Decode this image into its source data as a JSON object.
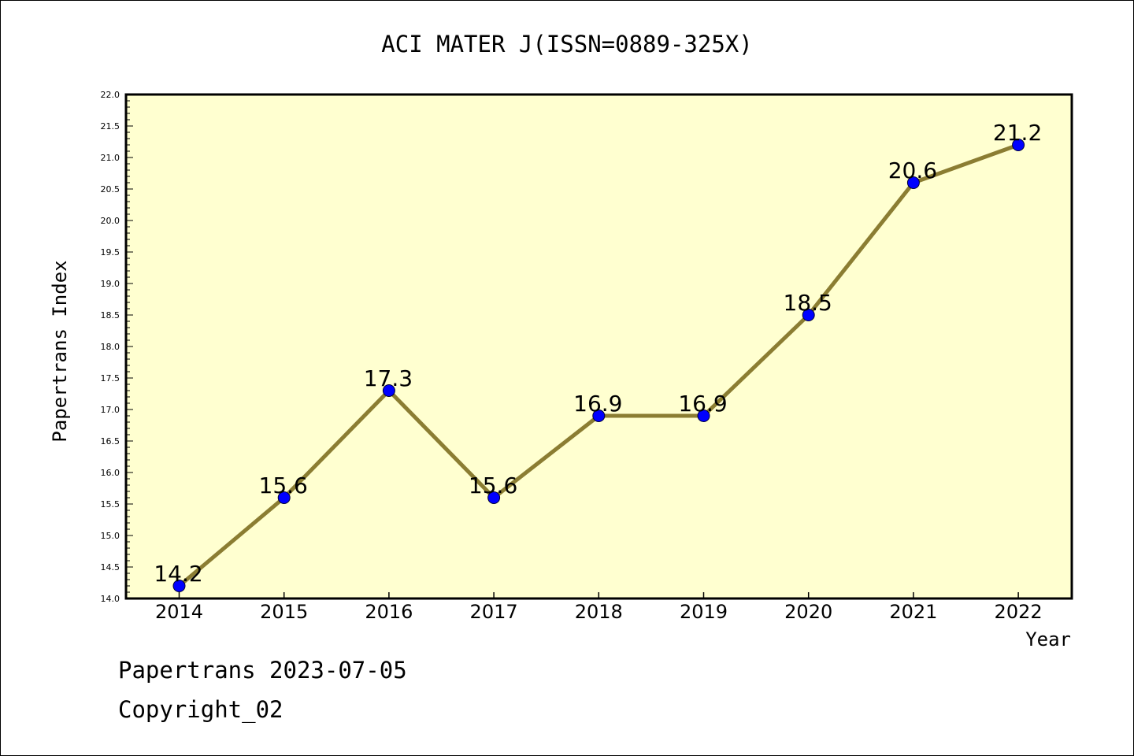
{
  "chart_data": {
    "type": "line",
    "title": "ACI MATER J(ISSN=0889-325X)",
    "xlabel": "Year",
    "ylabel": "Papertrans Index",
    "categories": [
      "2014",
      "2015",
      "2016",
      "2017",
      "2018",
      "2019",
      "2020",
      "2021",
      "2022"
    ],
    "values": [
      14.2,
      15.6,
      17.3,
      15.6,
      16.9,
      16.9,
      18.5,
      20.6,
      21.2
    ],
    "data_labels": [
      "14.2",
      "15.6",
      "17.3",
      "15.6",
      "16.9",
      "16.9",
      "18.5",
      "20.6",
      "21.2"
    ],
    "ylim": [
      14.0,
      22.0
    ],
    "y_ticks": [
      "14.0",
      "14.5",
      "15.0",
      "15.5",
      "16.0",
      "16.5",
      "17.0",
      "17.5",
      "18.0",
      "18.5",
      "19.0",
      "19.5",
      "20.0",
      "20.5",
      "21.0",
      "21.5",
      "22.0"
    ],
    "grid": false,
    "colors": {
      "plot_background": "#ffffd0",
      "line": "#8b7d32",
      "marker": "#0000ff"
    }
  },
  "footer": {
    "stamp": "Papertrans 2023-07-05",
    "copyright": "Copyright_02"
  }
}
